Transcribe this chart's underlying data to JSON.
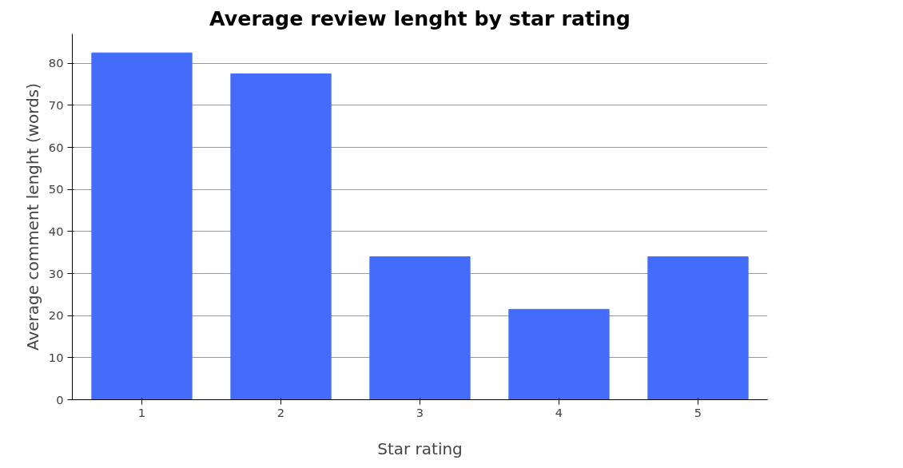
{
  "chart_data": {
    "type": "bar",
    "title": "Average review lenght by star rating",
    "xlabel": "Star rating",
    "ylabel": "Average comment lenght (words)",
    "categories": [
      "1",
      "2",
      "3",
      "4",
      "5"
    ],
    "values": [
      82.5,
      77.5,
      34,
      21.5,
      34
    ],
    "color": "#436cfb",
    "ylim": [
      0,
      87
    ],
    "yticks": [
      0,
      10,
      20,
      30,
      40,
      50,
      60,
      70,
      80
    ],
    "grid": "y"
  }
}
